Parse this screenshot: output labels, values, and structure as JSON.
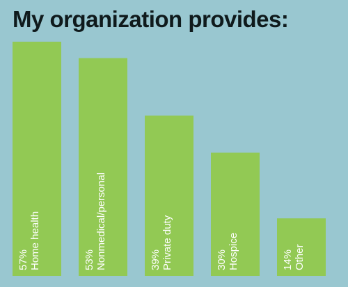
{
  "page": {
    "title": "My organization provides:",
    "background_color": "#99c7d0",
    "bar_color": "#92c954",
    "label_color": "#ffffff"
  },
  "chart_data": {
    "type": "bar",
    "orientation": "vertical",
    "title": "My organization provides:",
    "categories": [
      "Home health",
      "Nonmedical/personal",
      "Private duty",
      "Hospice",
      "Other"
    ],
    "values": [
      57,
      53,
      39,
      30,
      14
    ],
    "value_labels": [
      "57%",
      "53%",
      "39%",
      "30%",
      "14%"
    ],
    "unit": "%",
    "ylim": [
      0,
      57
    ],
    "grid": false,
    "legend": "none",
    "labels_inside_bars": "rotated"
  }
}
